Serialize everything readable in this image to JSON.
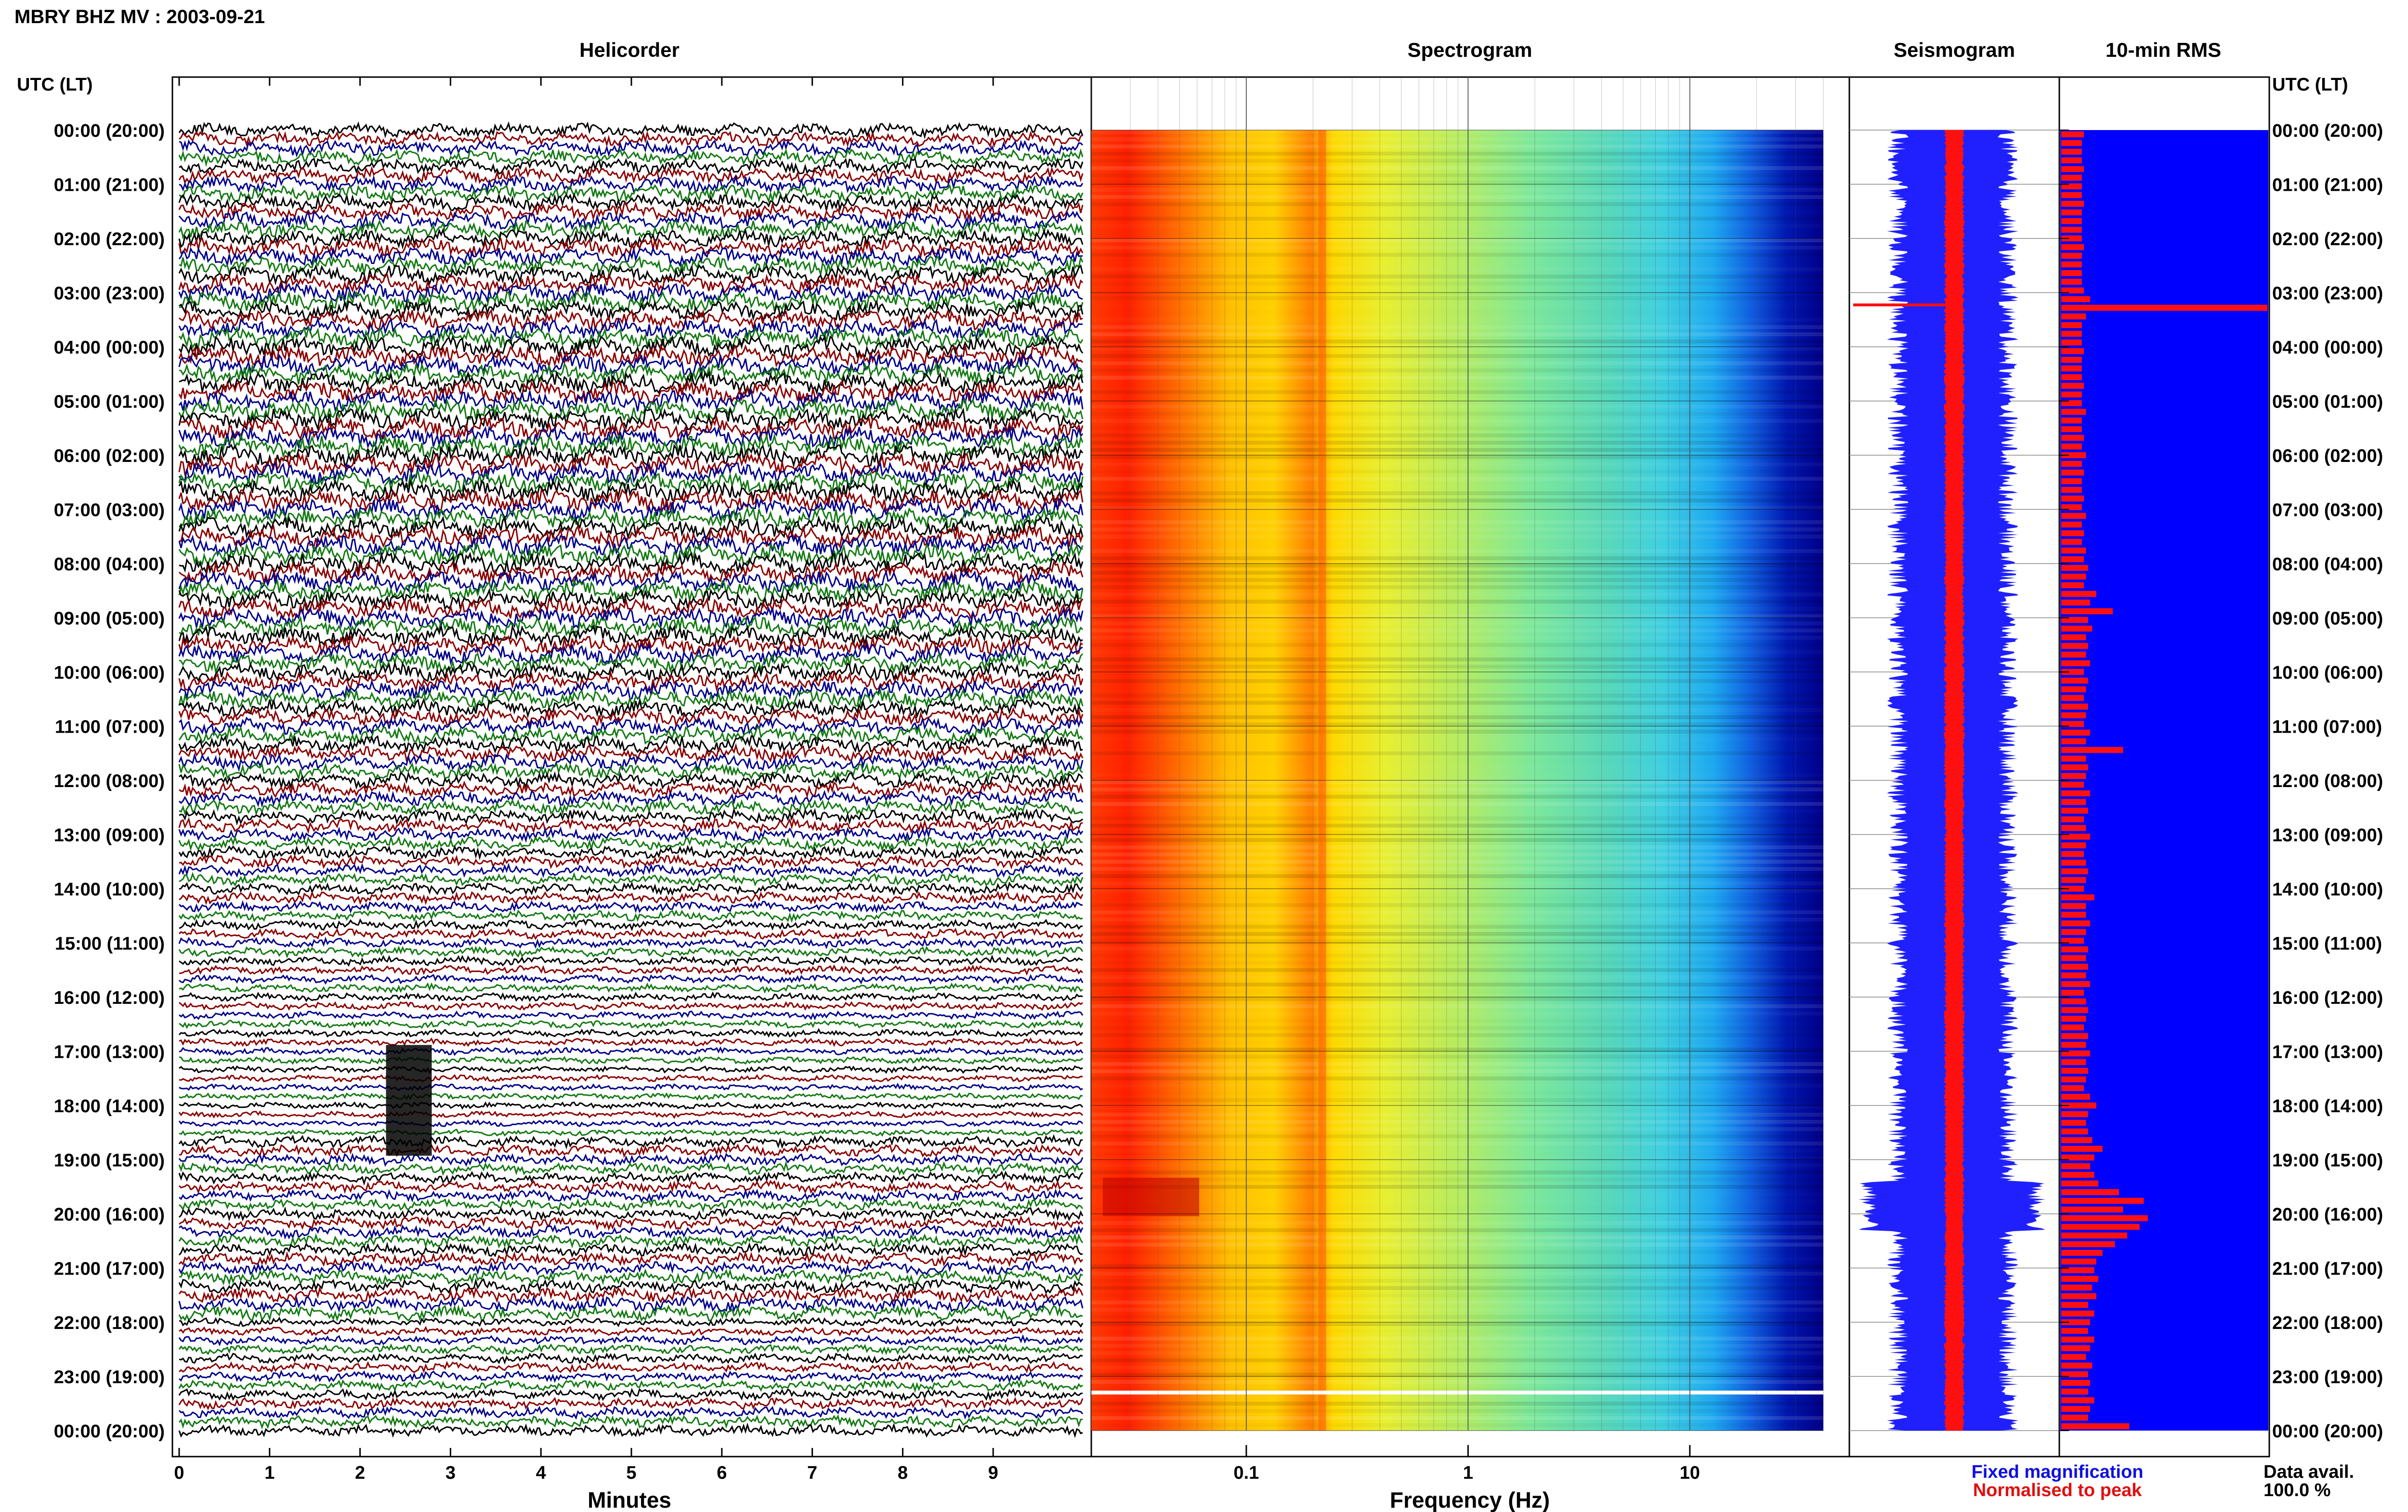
{
  "figure": {
    "title": "MBRY BHZ MV : 2003-09-21",
    "time_axis_label": "UTC (LT)",
    "data_available_label": "Data avail.",
    "data_available_value": "100.0 %"
  },
  "panels": {
    "helicorder": {
      "title": "Helicorder",
      "xlabel": "Minutes"
    },
    "spectrogram": {
      "title": "Spectrogram",
      "xlabel": "Frequency (Hz)"
    },
    "seismogram": {
      "title": "Seismogram",
      "legend_fixed": "Fixed magnification",
      "legend_normalised": "Normalised to peak",
      "legend_fixed_color": "#1010e0",
      "legend_normalised_color": "#e01010"
    },
    "rms": {
      "title": "10-min RMS"
    }
  },
  "colors": {
    "helicorder_traces": [
      "#000000",
      "#8b0000",
      "#00008b",
      "#137a13"
    ],
    "seismogram_fixed": "#2020ff",
    "seismogram_normalised": "#ff1010",
    "rms_background": "#0000ff",
    "rms_bars": "#ff1010"
  },
  "chart_data": [
    {
      "type": "line",
      "panel": "helicorder",
      "xlabel": "Minutes",
      "x_ticks": [
        "0",
        "1",
        "2",
        "3",
        "4",
        "5",
        "6",
        "7",
        "8",
        "9"
      ],
      "xlim": [
        0,
        10
      ],
      "y_ticks": [
        "00:00 (20:00)",
        "01:00 (21:00)",
        "02:00 (22:00)",
        "03:00 (23:00)",
        "04:00 (00:00)",
        "05:00 (01:00)",
        "06:00 (02:00)",
        "07:00 (03:00)",
        "08:00 (04:00)",
        "09:00 (05:00)",
        "10:00 (06:00)",
        "11:00 (07:00)",
        "12:00 (08:00)",
        "13:00 (09:00)",
        "14:00 (10:00)",
        "15:00 (11:00)",
        "16:00 (12:00)",
        "17:00 (13:00)",
        "18:00 (14:00)",
        "19:00 (15:00)",
        "20:00 (16:00)",
        "21:00 (17:00)",
        "22:00 (18:00)",
        "23:00 (19:00)",
        "00:00 (20:00)"
      ],
      "ylim_hours_utc": [
        0,
        24
      ],
      "trace_minutes": 10,
      "events": [
        {
          "hour_utc": 17.95,
          "minute": 2.5,
          "label": ""
        }
      ]
    },
    {
      "type": "heatmap",
      "panel": "spectrogram",
      "xlabel": "Frequency (Hz)",
      "x_scale": "log",
      "xlim": [
        0.02,
        40
      ],
      "x_ticks": [
        "0.1",
        "1",
        "10"
      ],
      "ylim_hours_utc": [
        0,
        24
      ],
      "colormap": "jet",
      "features": {
        "peak_band_hz": 0.22,
        "low_freq_energy_max_hours_utc": [
          19.5,
          20.2
        ],
        "data_gap_hour_utc": 23.3
      }
    },
    {
      "type": "line",
      "panel": "seismogram",
      "ylim_hours_utc": [
        0,
        24
      ],
      "series": [
        {
          "name": "Fixed magnification"
        },
        {
          "name": "Normalised to peak"
        }
      ]
    },
    {
      "type": "bar",
      "panel": "rms",
      "orientation": "horizontal",
      "ylim_hours_utc": [
        0,
        24
      ],
      "bin_minutes": 10,
      "values": [
        0.11,
        0.1,
        0.1,
        0.1,
        0.11,
        0.1,
        0.1,
        0.1,
        0.11,
        0.1,
        0.1,
        0.1,
        0.1,
        0.11,
        0.1,
        0.1,
        0.1,
        0.1,
        0.11,
        0.14,
        1.0,
        0.12,
        0.1,
        0.1,
        0.1,
        0.11,
        0.1,
        0.1,
        0.1,
        0.11,
        0.1,
        0.1,
        0.12,
        0.1,
        0.1,
        0.11,
        0.1,
        0.12,
        0.1,
        0.11,
        0.1,
        0.1,
        0.11,
        0.1,
        0.12,
        0.1,
        0.11,
        0.1,
        0.12,
        0.11,
        0.13,
        0.12,
        0.11,
        0.17,
        0.14,
        0.25,
        0.13,
        0.15,
        0.12,
        0.13,
        0.12,
        0.14,
        0.11,
        0.13,
        0.12,
        0.11,
        0.13,
        0.12,
        0.11,
        0.14,
        0.12,
        0.3,
        0.12,
        0.13,
        0.12,
        0.11,
        0.14,
        0.12,
        0.13,
        0.11,
        0.12,
        0.14,
        0.12,
        0.11,
        0.12,
        0.13,
        0.12,
        0.11,
        0.16,
        0.12,
        0.12,
        0.14,
        0.12,
        0.11,
        0.13,
        0.12,
        0.13,
        0.12,
        0.14,
        0.11,
        0.12,
        0.13,
        0.12,
        0.11,
        0.13,
        0.12,
        0.14,
        0.12,
        0.13,
        0.12,
        0.11,
        0.14,
        0.17,
        0.13,
        0.12,
        0.13,
        0.15,
        0.2,
        0.16,
        0.14,
        0.16,
        0.18,
        0.28,
        0.4,
        0.3,
        0.42,
        0.38,
        0.32,
        0.26,
        0.2,
        0.17,
        0.16,
        0.18,
        0.15,
        0.17,
        0.13,
        0.16,
        0.14,
        0.13,
        0.16,
        0.14,
        0.12,
        0.15,
        0.13,
        0.14,
        0.13,
        0.16,
        0.14,
        0.13,
        0.33
      ]
    }
  ]
}
